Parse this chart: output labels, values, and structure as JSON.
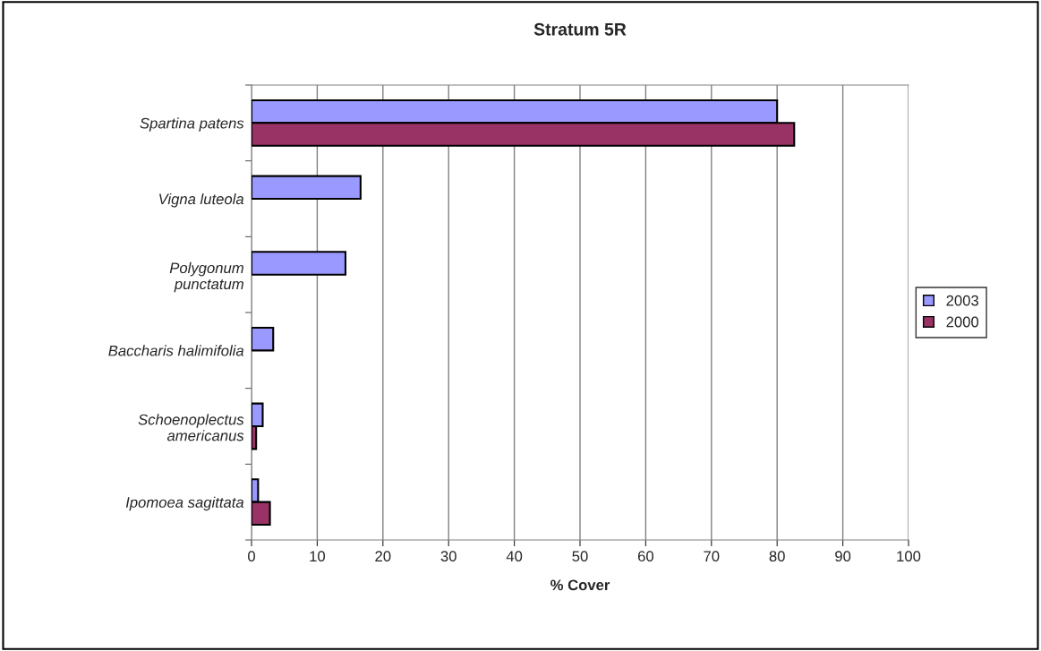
{
  "chart_data": {
    "type": "bar",
    "orientation": "horizontal",
    "title": "Stratum 5R",
    "xlabel": "% Cover",
    "categories": [
      "Spartina patens",
      "Vigna luteola",
      "Polygonum\npunctatum",
      "Baccharis halimifolia",
      "Schoenoplectus\namericanus",
      "Ipomoea sagittata"
    ],
    "series": [
      {
        "name": "2003",
        "color": "#9999ff",
        "values": [
          80,
          16.6,
          14.3,
          3.3,
          1.7,
          1.0
        ]
      },
      {
        "name": "2000",
        "color": "#993366",
        "values": [
          82.6,
          null,
          null,
          null,
          0.7,
          2.8
        ]
      }
    ],
    "xlim": [
      0,
      100
    ],
    "xticks": [
      0,
      10,
      20,
      30,
      40,
      50,
      60,
      70,
      80,
      90,
      100
    ],
    "grid": "x",
    "legend": "right"
  }
}
